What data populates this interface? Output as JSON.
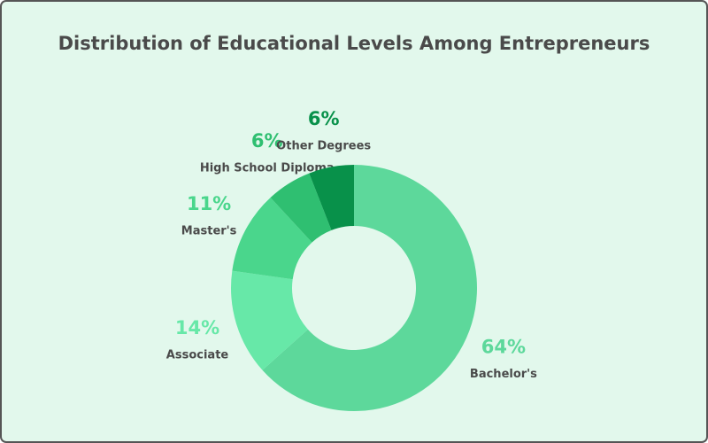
{
  "chart_data": {
    "type": "donut",
    "title": "Distribution of Educational Levels Among Entrepreneurs",
    "categories": [
      "Bachelor's",
      "Associate",
      "Master's",
      "High School Diploma",
      "Other Degrees"
    ],
    "values": [
      64,
      14,
      11,
      6,
      6
    ],
    "value_labels": [
      "64%",
      "14%",
      "11%",
      "6%",
      "6%"
    ],
    "colors": [
      "#5dd89b",
      "#67e8a8",
      "#4ad68c",
      "#2fbf71",
      "#08914a"
    ]
  }
}
